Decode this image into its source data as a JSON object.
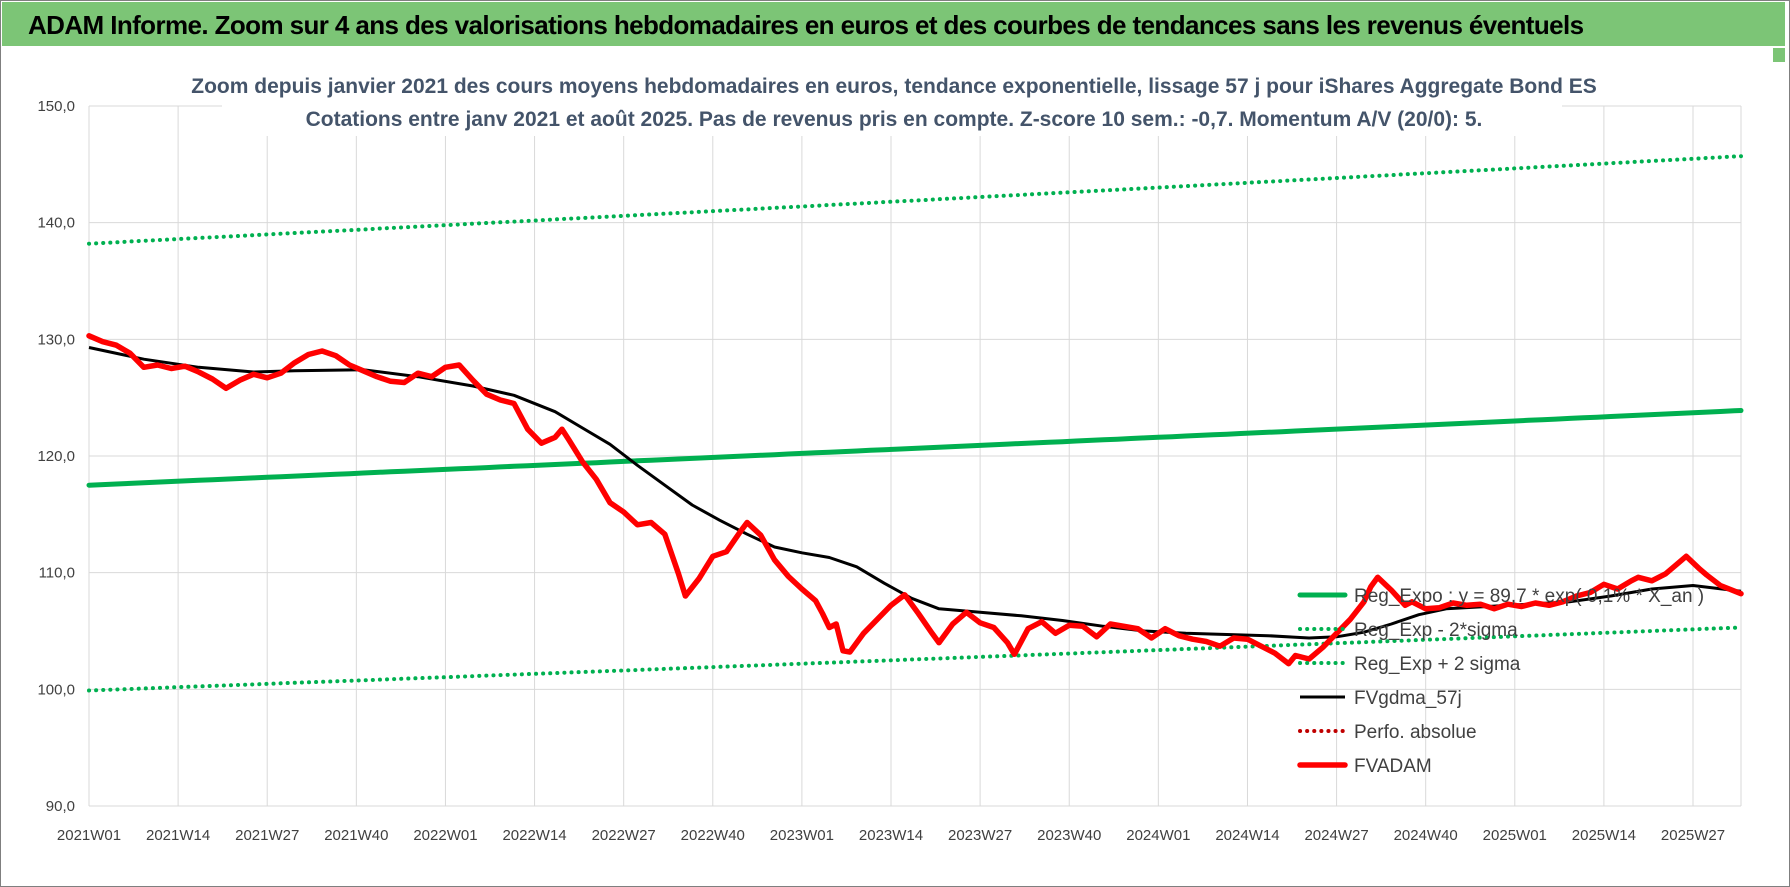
{
  "header": {
    "title": "ADAM Informe. Zoom sur 4 ans des valorisations hebdomadaires en euros et des courbes de tendances sans les revenus éventuels"
  },
  "colors": {
    "banner": "#7cc576",
    "trend": "#00b050",
    "fvadam": "#ff0000",
    "moving_average": "#000000",
    "perfo": "#c00000",
    "grid": "#d9d9d9"
  },
  "chart_data": {
    "type": "line",
    "title_lines": [
      "Zoom depuis janvier 2021 des cours moyens hebdomadaires en euros, tendance exponentielle, lissage 57 j pour iShares Aggregate  Bond ES",
      "Cotations entre janv 2021 et août 2025.  Pas de revenus pris en compte. Z-score 10 sem.:  -0,7. Momentum A/V (20/0): 5."
    ],
    "xlabel": "",
    "ylabel": "",
    "ylim": [
      90,
      150
    ],
    "y_ticks": [
      "90,0",
      "100,0",
      "110,0",
      "120,0",
      "130,0",
      "140,0",
      "150,0"
    ],
    "x_ticks": [
      "2021W01",
      "2021W14",
      "2021W27",
      "2021W40",
      "2022W01",
      "2022W14",
      "2022W27",
      "2022W40",
      "2023W01",
      "2023W14",
      "2023W27",
      "2023W40",
      "2024W01",
      "2024W14",
      "2024W27",
      "2024W40",
      "2025W01",
      "2025W14",
      "2025W27"
    ],
    "grid": true,
    "legend_position": "right",
    "series": [
      {
        "name": "Reg_Expo : y = 89,7 * exp( 0,1% *  X_an )",
        "style": "solid-thick",
        "color": "#00b050",
        "points": [
          [
            0,
            117.5
          ],
          [
            241,
            123.9
          ]
        ]
      },
      {
        "name": "Reg_Exp - 2*sigma",
        "style": "dotted",
        "color": "#00b050",
        "points": [
          [
            0,
            99.9
          ],
          [
            241,
            105.3
          ]
        ]
      },
      {
        "name": "Reg_Exp + 2 sigma",
        "style": "dotted",
        "color": "#00b050",
        "points": [
          [
            0,
            138.2
          ],
          [
            241,
            145.7
          ]
        ]
      },
      {
        "name": "FVgdma_57j",
        "style": "solid",
        "color": "#000000",
        "points": [
          [
            0,
            129.3
          ],
          [
            8,
            128.3
          ],
          [
            16,
            127.6
          ],
          [
            24,
            127.2
          ],
          [
            30,
            127.3
          ],
          [
            40,
            127.4
          ],
          [
            48,
            126.8
          ],
          [
            56,
            126.0
          ],
          [
            62,
            125.2
          ],
          [
            68,
            123.8
          ],
          [
            72,
            122.4
          ],
          [
            76,
            121.0
          ],
          [
            80,
            119.2
          ],
          [
            84,
            117.5
          ],
          [
            88,
            115.8
          ],
          [
            92,
            114.5
          ],
          [
            96,
            113.3
          ],
          [
            100,
            112.2
          ],
          [
            104,
            111.7
          ],
          [
            108,
            111.3
          ],
          [
            112,
            110.5
          ],
          [
            116,
            109.1
          ],
          [
            120,
            107.8
          ],
          [
            124,
            106.9
          ],
          [
            130,
            106.6
          ],
          [
            136,
            106.3
          ],
          [
            142,
            105.9
          ],
          [
            148,
            105.4
          ],
          [
            154,
            105.0
          ],
          [
            160,
            104.8
          ],
          [
            166,
            104.7
          ],
          [
            172,
            104.6
          ],
          [
            178,
            104.4
          ],
          [
            182,
            104.5
          ],
          [
            186,
            104.9
          ],
          [
            190,
            105.6
          ],
          [
            194,
            106.4
          ],
          [
            198,
            106.9
          ],
          [
            204,
            107.1
          ],
          [
            210,
            107.3
          ],
          [
            216,
            107.5
          ],
          [
            222,
            108.0
          ],
          [
            228,
            108.6
          ],
          [
            234,
            108.9
          ],
          [
            241,
            108.4
          ]
        ]
      },
      {
        "name": "Perfo. absolue",
        "style": "dotted",
        "color": "#c00000",
        "points": []
      },
      {
        "name": "FVADAM",
        "style": "solid-thick",
        "color": "#ff0000",
        "points": [
          [
            0,
            130.3
          ],
          [
            2,
            129.8
          ],
          [
            4,
            129.5
          ],
          [
            6,
            128.8
          ],
          [
            8,
            127.6
          ],
          [
            10,
            127.8
          ],
          [
            12,
            127.5
          ],
          [
            14,
            127.7
          ],
          [
            16,
            127.2
          ],
          [
            18,
            126.6
          ],
          [
            20,
            125.8
          ],
          [
            22,
            126.5
          ],
          [
            24,
            127.0
          ],
          [
            26,
            126.7
          ],
          [
            28,
            127.1
          ],
          [
            30,
            128.0
          ],
          [
            32,
            128.7
          ],
          [
            34,
            129.0
          ],
          [
            36,
            128.6
          ],
          [
            38,
            127.8
          ],
          [
            40,
            127.3
          ],
          [
            42,
            126.8
          ],
          [
            44,
            126.4
          ],
          [
            46,
            126.3
          ],
          [
            48,
            127.1
          ],
          [
            50,
            126.8
          ],
          [
            52,
            127.6
          ],
          [
            54,
            127.8
          ],
          [
            56,
            126.5
          ],
          [
            58,
            125.3
          ],
          [
            60,
            124.8
          ],
          [
            62,
            124.5
          ],
          [
            64,
            122.3
          ],
          [
            66,
            121.1
          ],
          [
            68,
            121.6
          ],
          [
            69,
            122.3
          ],
          [
            70,
            121.4
          ],
          [
            72,
            119.5
          ],
          [
            74,
            118.0
          ],
          [
            76,
            116.0
          ],
          [
            78,
            115.2
          ],
          [
            80,
            114.1
          ],
          [
            82,
            114.3
          ],
          [
            84,
            113.3
          ],
          [
            86,
            109.9
          ],
          [
            87,
            108.0
          ],
          [
            89,
            109.5
          ],
          [
            91,
            111.4
          ],
          [
            93,
            111.8
          ],
          [
            95,
            113.5
          ],
          [
            96,
            114.3
          ],
          [
            98,
            113.2
          ],
          [
            100,
            111.1
          ],
          [
            102,
            109.7
          ],
          [
            104,
            108.6
          ],
          [
            106,
            107.6
          ],
          [
            107,
            106.5
          ],
          [
            108,
            105.3
          ],
          [
            109,
            105.6
          ],
          [
            110,
            103.3
          ],
          [
            111,
            103.2
          ],
          [
            113,
            104.8
          ],
          [
            115,
            106.0
          ],
          [
            117,
            107.2
          ],
          [
            119,
            108.1
          ],
          [
            121,
            106.5
          ],
          [
            123,
            104.8
          ],
          [
            124,
            104.0
          ],
          [
            126,
            105.6
          ],
          [
            128,
            106.6
          ],
          [
            130,
            105.7
          ],
          [
            132,
            105.3
          ],
          [
            134,
            104.0
          ],
          [
            135,
            103.0
          ],
          [
            137,
            105.2
          ],
          [
            139,
            105.8
          ],
          [
            141,
            104.8
          ],
          [
            143,
            105.5
          ],
          [
            145,
            105.4
          ],
          [
            147,
            104.5
          ],
          [
            149,
            105.6
          ],
          [
            151,
            105.4
          ],
          [
            153,
            105.2
          ],
          [
            155,
            104.4
          ],
          [
            157,
            105.2
          ],
          [
            159,
            104.6
          ],
          [
            161,
            104.3
          ],
          [
            163,
            104.1
          ],
          [
            165,
            103.7
          ],
          [
            167,
            104.4
          ],
          [
            169,
            104.3
          ],
          [
            171,
            103.7
          ],
          [
            173,
            103.1
          ],
          [
            175,
            102.2
          ],
          [
            176,
            102.9
          ],
          [
            178,
            102.6
          ],
          [
            180,
            103.6
          ],
          [
            182,
            104.8
          ],
          [
            184,
            106.0
          ],
          [
            186,
            107.5
          ],
          [
            187,
            108.8
          ],
          [
            188,
            109.6
          ],
          [
            190,
            108.5
          ],
          [
            192,
            107.2
          ],
          [
            193,
            107.5
          ],
          [
            195,
            106.9
          ],
          [
            197,
            107.0
          ],
          [
            199,
            107.4
          ],
          [
            201,
            107.2
          ],
          [
            203,
            107.3
          ],
          [
            205,
            106.9
          ],
          [
            207,
            107.3
          ],
          [
            209,
            107.1
          ],
          [
            211,
            107.4
          ],
          [
            213,
            107.2
          ],
          [
            215,
            107.5
          ],
          [
            217,
            108.0
          ],
          [
            219,
            108.3
          ],
          [
            221,
            109.0
          ],
          [
            223,
            108.6
          ],
          [
            225,
            109.3
          ],
          [
            226,
            109.6
          ],
          [
            228,
            109.3
          ],
          [
            230,
            109.9
          ],
          [
            232,
            110.9
          ],
          [
            233,
            111.4
          ],
          [
            235,
            110.3
          ],
          [
            236,
            109.8
          ],
          [
            238,
            108.9
          ],
          [
            241,
            108.2
          ]
        ]
      }
    ]
  }
}
